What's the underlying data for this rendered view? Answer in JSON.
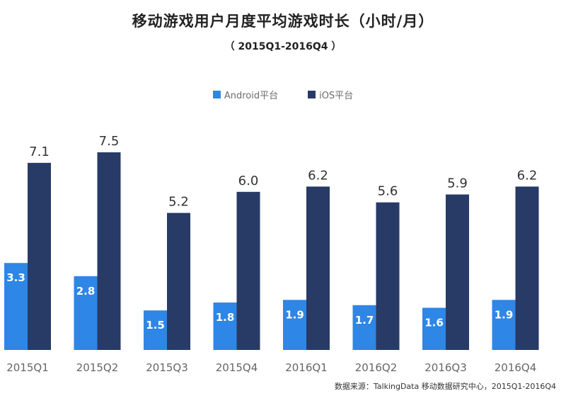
{
  "chart_data": {
    "type": "bar",
    "title": "移动游戏用户月度平均游戏时长（小时/月）",
    "subtitle": "（ 2015Q1-2016Q4 ）",
    "categories": [
      "2015Q1",
      "2015Q2",
      "2015Q3",
      "2015Q4",
      "2016Q1",
      "2016Q2",
      "2016Q3",
      "2016Q4"
    ],
    "series": [
      {
        "name": "Android平台",
        "color": "#2e86e6",
        "values": [
          3.3,
          2.8,
          1.5,
          1.8,
          1.9,
          1.7,
          1.6,
          1.9
        ]
      },
      {
        "name": "iOS平台",
        "color": "#283a66",
        "values": [
          7.1,
          7.5,
          5.2,
          6.0,
          6.2,
          5.6,
          5.9,
          6.2
        ]
      }
    ],
    "ylim": [
      0,
      8
    ],
    "grid": false,
    "legend": "top-center",
    "source": "数据来源：TalkingData 移动数据研究中心，2015Q1-2016Q4"
  }
}
